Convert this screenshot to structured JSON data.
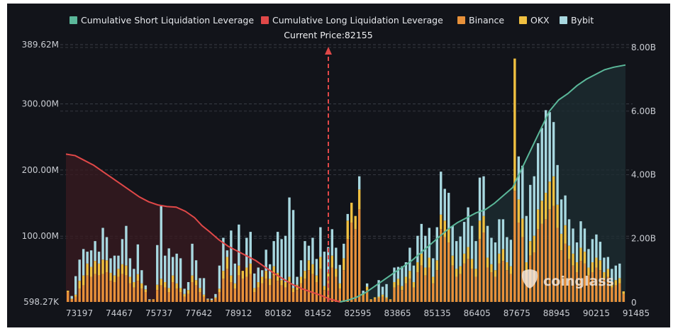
{
  "chart_data": {
    "type": "bar",
    "title": "",
    "current_price_label": "Current Price:82155",
    "current_price": 82155,
    "watermark": "coinglass",
    "legend": [
      {
        "name": "Cumulative Short Liquidation Leverage",
        "color": "#5bb89a",
        "kind": "line"
      },
      {
        "name": "Cumulative Long Liquidation Leverage",
        "color": "#e04848",
        "kind": "line"
      },
      {
        "name": "Binance",
        "color": "#e8913a",
        "kind": "bar"
      },
      {
        "name": "OKX",
        "color": "#f0c040",
        "kind": "bar"
      },
      {
        "name": "Bybit",
        "color": "#a8d8e0",
        "kind": "bar"
      }
    ],
    "left_axis": {
      "min": 598270,
      "max": 389620000,
      "ticks": [
        "389.62M",
        "300.00M",
        "200.00M",
        "100.00M",
        "598.27K"
      ],
      "tick_values": [
        389620000,
        300000000,
        200000000,
        100000000,
        598270
      ]
    },
    "right_axis": {
      "min": 0,
      "max": 8000000000,
      "ticks": [
        "8.00B",
        "6.00B",
        "4.00B",
        "2.00B",
        "0"
      ],
      "tick_values": [
        8000000000,
        6000000000,
        4000000000,
        2000000000,
        0
      ]
    },
    "x_ticks": [
      "73197",
      "74467",
      "75737",
      "77642",
      "78912",
      "80182",
      "81452",
      "82595",
      "83865",
      "85135",
      "86405",
      "87675",
      "88945",
      "90215",
      "91485"
    ],
    "x_range": [
      73197,
      91485
    ],
    "grid": "dashed-horizontal",
    "legend_position": "top",
    "series": [
      {
        "name": "Binance",
        "unit": "M",
        "values": [
          15,
          4,
          8,
          20,
          25,
          40,
          38,
          42,
          40,
          42,
          45,
          32,
          30,
          38,
          42,
          40,
          28,
          22,
          32,
          20,
          15,
          2,
          3,
          18,
          25,
          22,
          15,
          30,
          20,
          15,
          8,
          12,
          30,
          25,
          15,
          8,
          3,
          2,
          5,
          15,
          35,
          50,
          30,
          20,
          40,
          35,
          38,
          42,
          15,
          22,
          28,
          35,
          25,
          40,
          32,
          25,
          22,
          28,
          15,
          18,
          28,
          35,
          48,
          42,
          30,
          50,
          18,
          35,
          52,
          38,
          20,
          48,
          95,
          120,
          110,
          140,
          10,
          18,
          3,
          5,
          6,
          8,
          5,
          3,
          22,
          25,
          18,
          28,
          35,
          22,
          45,
          55,
          40,
          52,
          28,
          48,
          110,
          98,
          90,
          55,
          38,
          42,
          58,
          65,
          50,
          38,
          95,
          105,
          52,
          45,
          38,
          58,
          62,
          48,
          42,
          168,
          120,
          98,
          45,
          70,
          75,
          110,
          118,
          125,
          140,
          145,
          112,
          78,
          88,
          65,
          55,
          45,
          62,
          58,
          40,
          45,
          52,
          48,
          35,
          38,
          22,
          25,
          28,
          12
        ],
        "color": "#e8913a"
      },
      {
        "name": "OKX",
        "unit": "M",
        "values": [
          2,
          1,
          3,
          12,
          15,
          18,
          15,
          20,
          18,
          22,
          18,
          12,
          10,
          12,
          15,
          15,
          10,
          8,
          10,
          8,
          4,
          1,
          1,
          8,
          10,
          8,
          6,
          10,
          8,
          6,
          4,
          6,
          10,
          8,
          6,
          3,
          1,
          1,
          2,
          5,
          12,
          18,
          10,
          8,
          15,
          12,
          14,
          16,
          6,
          8,
          10,
          12,
          10,
          14,
          12,
          8,
          8,
          10,
          6,
          8,
          10,
          12,
          15,
          15,
          10,
          18,
          6,
          10,
          18,
          12,
          8,
          18,
          28,
          30,
          20,
          30,
          2,
          5,
          1,
          2,
          2,
          3,
          2,
          1,
          8,
          10,
          6,
          10,
          12,
          8,
          15,
          18,
          12,
          15,
          10,
          15,
          22,
          25,
          20,
          15,
          12,
          12,
          15,
          18,
          15,
          12,
          28,
          25,
          15,
          12,
          10,
          15,
          18,
          12,
          12,
          200,
          35,
          28,
          15,
          22,
          25,
          30,
          35,
          40,
          42,
          45,
          35,
          25,
          28,
          20,
          18,
          15,
          20,
          18,
          12,
          15,
          15,
          15,
          10,
          12,
          8,
          8,
          8,
          4
        ],
        "color": "#f0c040"
      },
      {
        "name": "Bybit",
        "unit": "M",
        "values": [
          0,
          4,
          28,
          32,
          40,
          18,
          25,
          30,
          18,
          48,
          35,
          22,
          30,
          20,
          38,
          60,
          28,
          20,
          45,
          20,
          6,
          1,
          0,
          60,
          110,
          40,
          60,
          28,
          45,
          45,
          8,
          12,
          48,
          30,
          15,
          25,
          1,
          2,
          5,
          35,
          50,
          10,
          68,
          30,
          62,
          0,
          45,
          48,
          22,
          22,
          10,
          32,
          22,
          38,
          62,
          62,
          70,
          120,
          118,
          12,
          25,
          45,
          22,
          40,
          25,
          45,
          52,
          38,
          40,
          32,
          28,
          22,
          10,
          0,
          0,
          20,
          5,
          5,
          0,
          0,
          25,
          12,
          20,
          0,
          22,
          18,
          30,
          22,
          35,
          25,
          40,
          45,
          48,
          45,
          28,
          50,
          65,
          48,
          55,
          45,
          42,
          45,
          48,
          60,
          50,
          42,
          65,
          60,
          48,
          40,
          42,
          52,
          45,
          38,
          40,
          0,
          65,
          80,
          70,
          85,
          90,
          100,
          110,
          125,
          105,
          82,
          60,
          52,
          45,
          40,
          38,
          30,
          40,
          35,
          28,
          35,
          35,
          28,
          22,
          18,
          20,
          22,
          22,
          0
        ],
        "color": "#a8d8e0"
      },
      {
        "name": "Cumulative Long Liquidation Leverage",
        "unit": "B",
        "axis": "right",
        "color": "#e04848",
        "x": [
          73197,
          73500,
          73800,
          74100,
          74400,
          74700,
          75000,
          75300,
          75600,
          75900,
          76200,
          76500,
          76800,
          77100,
          77400,
          77642,
          77900,
          78200,
          78500,
          78800,
          79100,
          79400,
          79700,
          80000,
          80300,
          80600,
          80900,
          81200,
          81500,
          81800,
          82155
        ],
        "values": [
          4.65,
          4.6,
          4.45,
          4.3,
          4.1,
          3.9,
          3.7,
          3.5,
          3.3,
          3.15,
          3.05,
          3.0,
          2.98,
          2.85,
          2.65,
          2.4,
          2.2,
          1.95,
          1.75,
          1.6,
          1.45,
          1.3,
          1.1,
          0.9,
          0.72,
          0.55,
          0.42,
          0.32,
          0.22,
          0.1,
          0.0
        ]
      },
      {
        "name": "Cumulative Short Liquidation Leverage",
        "unit": "B",
        "axis": "right",
        "color": "#5bb89a",
        "x": [
          82155,
          82400,
          82700,
          83000,
          83300,
          83600,
          83900,
          84200,
          84500,
          84800,
          85100,
          85400,
          85700,
          86000,
          86300,
          86600,
          86900,
          87200,
          87500,
          87800,
          88100,
          88400,
          88700,
          89000,
          89300,
          89600,
          89900,
          90200,
          90500,
          90800,
          91100,
          91485
        ],
        "values": [
          0.0,
          0.05,
          0.15,
          0.3,
          0.5,
          0.7,
          0.9,
          1.1,
          1.3,
          1.55,
          1.8,
          2.05,
          2.3,
          2.5,
          2.65,
          2.8,
          2.9,
          3.1,
          3.35,
          3.6,
          4.2,
          4.8,
          5.4,
          6.0,
          6.35,
          6.55,
          6.8,
          7.0,
          7.15,
          7.3,
          7.38,
          7.45
        ]
      }
    ]
  }
}
